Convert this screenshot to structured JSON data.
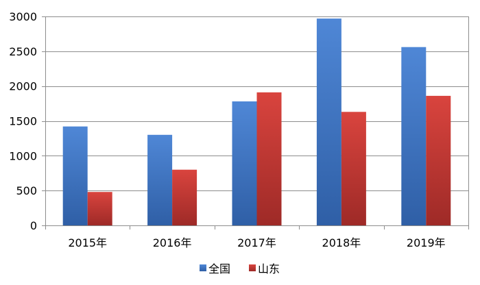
{
  "chart_data": {
    "type": "bar",
    "title": "",
    "xlabel": "",
    "ylabel": "",
    "categories": [
      "2015年",
      "2016年",
      "2017年",
      "2018年",
      "2019年"
    ],
    "series": [
      {
        "name": "全国",
        "values": [
          1420,
          1300,
          1780,
          2970,
          2560
        ],
        "color": "#4a7ecb"
      },
      {
        "name": "山东",
        "values": [
          480,
          800,
          1910,
          1630,
          1860
        ],
        "color": "#cc3b36"
      }
    ],
    "ylim": [
      0,
      3000
    ],
    "yticks": [
      0,
      500,
      1000,
      1500,
      2000,
      2500,
      3000
    ],
    "ytick_labels": [
      "0",
      "500",
      "1000",
      "1500",
      "2000",
      "2500",
      "3000"
    ],
    "grid": true,
    "legend_position": "bottom-center"
  }
}
